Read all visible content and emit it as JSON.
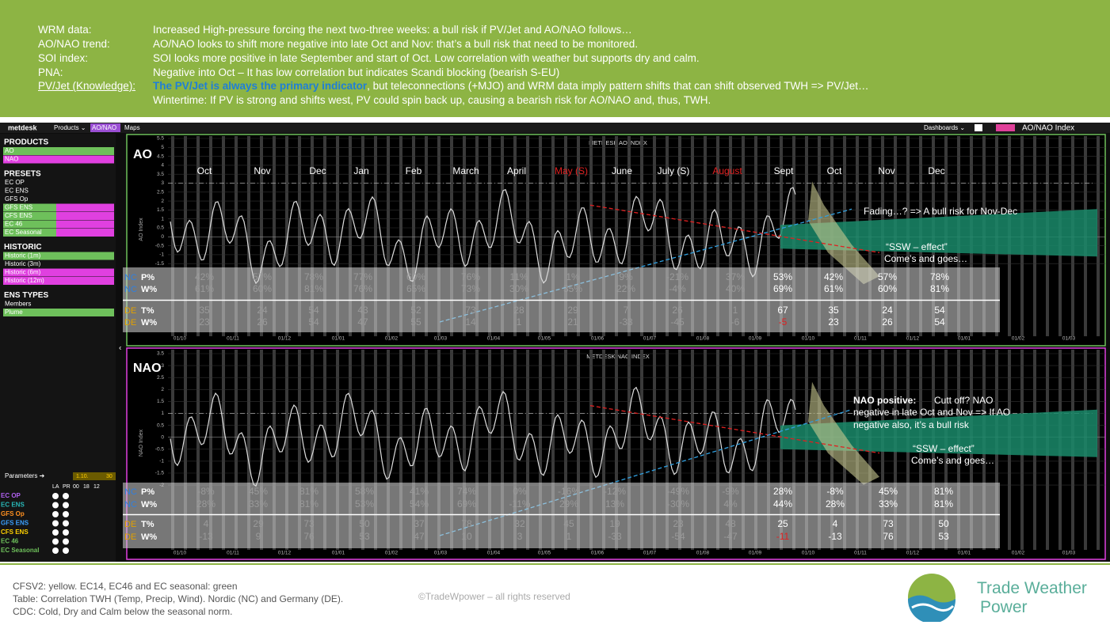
{
  "header": {
    "rows": [
      {
        "label": "WRM data:",
        "text": "Increased High-pressure forcing the next two-three weeks: a bull risk if PV/Jet and AO/NAO follows…"
      },
      {
        "label": "AO/NAO trend:",
        "text": "AO/NAO looks to shift more negative into late Oct and Nov: that’s a bull risk that need to be monitored."
      },
      {
        "label": "SOI index:",
        "text": "SOI looks more positive in late September and start of Oct. Low correlation with weather but supports dry and calm."
      },
      {
        "label": "PNA:",
        "text": "Negative into Oct –  It has low correlation but indicates Scandi blocking (bearish S-EU)"
      },
      {
        "label": "PV/Jet (Knowledge):",
        "highlight": "The PV/Jet is always the primary indicator",
        "text": ", but teleconnections (+MJO) and WRM data imply pattern shifts that can shift observed TWH => PV/Jet…"
      },
      {
        "text": "Wintertime: If PV is strong and shifts west, PV could spin back up, causing a bearish risk for AO/NAO and, thus, TWH."
      }
    ]
  },
  "topbar": {
    "logo": "metdesk",
    "menu": [
      "Products ⌄",
      "AO/NAO",
      "Maps"
    ],
    "right": [
      "Dashboards ⌄",
      "AO/NAO Index"
    ]
  },
  "sidebar": {
    "sections": [
      {
        "title": "PRODUCTS",
        "items": [
          "AO",
          "NAO"
        ]
      },
      {
        "title": "PRESETS",
        "items": [
          "EC OP",
          "EC ENS",
          "GFS Op",
          "GFS ENS",
          "CFS ENS",
          "EC 46",
          "EC Seasonal"
        ]
      },
      {
        "title": "HISTORIC",
        "items": [
          "Historic (1m)",
          "Historic (3m)",
          "Historic (6m)",
          "Historic (12m)"
        ]
      },
      {
        "title": "ENS TYPES",
        "items": [
          "Members",
          "Plume"
        ]
      }
    ]
  },
  "parameters": {
    "title": "Parameters ➔",
    "dates": [
      "1.10.",
      "30"
    ],
    "columns": [
      "LA",
      "PR",
      "00",
      "18",
      "12"
    ],
    "rows": [
      "EC OP",
      "EC ENS",
      "GFS Op",
      "GFS ENS",
      "CFS ENS",
      "EC 46",
      "EC Seasonal"
    ]
  },
  "charts": [
    {
      "title": "METDESK AO INDEX",
      "label": "AO",
      "axis_label": "AO Index",
      "yticks": [
        5.5,
        5,
        4.5,
        4,
        3.5,
        3,
        2.5,
        2,
        1.5,
        1,
        0.5,
        0,
        -0.5,
        -1,
        -1.5
      ],
      "months": [
        "Oct",
        "Nov",
        "Dec",
        "Jan",
        "Feb",
        "March",
        "April",
        "May (S)",
        "June",
        "July (S)",
        "August",
        "Sept",
        "Oct",
        "Nov",
        "Dec"
      ],
      "dates": [
        "01/10",
        "01/11",
        "01/12",
        "01/01",
        "01/02",
        "01/03",
        "01/04",
        "01/05",
        "01/06",
        "01/07",
        "01/08",
        "01/09",
        "01/10",
        "01/11",
        "01/12",
        "01/01",
        "01/02",
        "01/03"
      ],
      "table": [
        {
          "region": "NC",
          "metric": "P%",
          "values": [
            "42%",
            "57%",
            "78%",
            "77%",
            "60%",
            "76%",
            "11%",
            "1%",
            "9%",
            "-21%",
            "37%",
            "53%",
            "42%",
            "57%",
            "78%"
          ]
        },
        {
          "region": "NC",
          "metric": "W%",
          "values": [
            "61%",
            "60%",
            "81%",
            "76%",
            "65%",
            "73%",
            "30%",
            "35%",
            "22%",
            "-4%",
            "40%",
            "69%",
            "61%",
            "60%",
            "81%"
          ]
        },
        {
          "region": "DE",
          "metric": "T%",
          "values": [
            "35",
            "24",
            "54",
            "43",
            "52",
            "73",
            "28",
            "29",
            "7",
            "26",
            "1",
            "67",
            "35",
            "24",
            "54"
          ]
        },
        {
          "region": "DE",
          "metric": "W%",
          "values": [
            "23",
            "26",
            "54",
            "47",
            "55",
            "14",
            "1",
            "21",
            "-33",
            "-45",
            "-6",
            "-5",
            "23",
            "26",
            "54"
          ]
        }
      ],
      "annotations": [
        "Fading…? => A bull risk for Nov-Dec",
        "“SSW – effect”",
        "Come’s and goes…"
      ]
    },
    {
      "title": "METDESK NAO INDEX",
      "label": "NAO",
      "axis_label": "NAO Index",
      "yticks": [
        3.5,
        3,
        2.5,
        2,
        1.5,
        1,
        0.5,
        0,
        -0.5,
        -1,
        -1.5,
        -2
      ],
      "months": [],
      "dates": [
        "01/10",
        "01/11",
        "01/12",
        "01/01",
        "01/02",
        "01/03",
        "01/04",
        "01/05",
        "01/06",
        "01/07",
        "01/08",
        "01/09",
        "01/10",
        "01/11",
        "01/12",
        "01/01",
        "01/02",
        "01/03"
      ],
      "table": [
        {
          "region": "NC",
          "metric": "P%",
          "values": [
            "-8%",
            "45%",
            "81%",
            "58%",
            "41%",
            "74%",
            "0%",
            "-16%",
            "-12%",
            "-49%",
            "-9%",
            "28%",
            "-8%",
            "45%",
            "81%"
          ]
        },
        {
          "region": "NC",
          "metric": "W%",
          "values": [
            "28%",
            "33%",
            "81%",
            "53%",
            "54%",
            "69%",
            "-11%",
            "29%",
            "13%",
            "-30%",
            "4%",
            "44%",
            "28%",
            "33%",
            "81%"
          ]
        },
        {
          "region": "DE",
          "metric": "T%",
          "values": [
            "4",
            "29",
            "73",
            "50",
            "37",
            "78",
            "32",
            "45",
            "19",
            "23",
            "48",
            "25",
            "4",
            "73",
            "50"
          ]
        },
        {
          "region": "DE",
          "metric": "W%",
          "values": [
            "-13",
            "9",
            "76",
            "53",
            "47",
            "10",
            "3",
            "1",
            "-33",
            "-54",
            "-47",
            "-11",
            "-13",
            "76",
            "53"
          ]
        }
      ],
      "annotations": [
        "NAO positive:",
        "Cutt off? NAO",
        "negative in late Oct and Nov => If AO",
        "negative also, it’s a bull risk",
        "“SSW – effect”",
        "Come’s and goes…"
      ]
    }
  ],
  "footer": {
    "lines": [
      "CFSV2: yellow. EC14, EC46 and EC seasonal: green",
      "Table: Correlation TWH (Temp, Precip, Wind). Nordic (NC) and Germany (DE).",
      "CDC: Cold, Dry and Calm below the seasonal norm."
    ],
    "copyright": "©TradeWpower – all rights reserved",
    "brand": [
      "Trade Weather",
      "Power"
    ]
  }
}
